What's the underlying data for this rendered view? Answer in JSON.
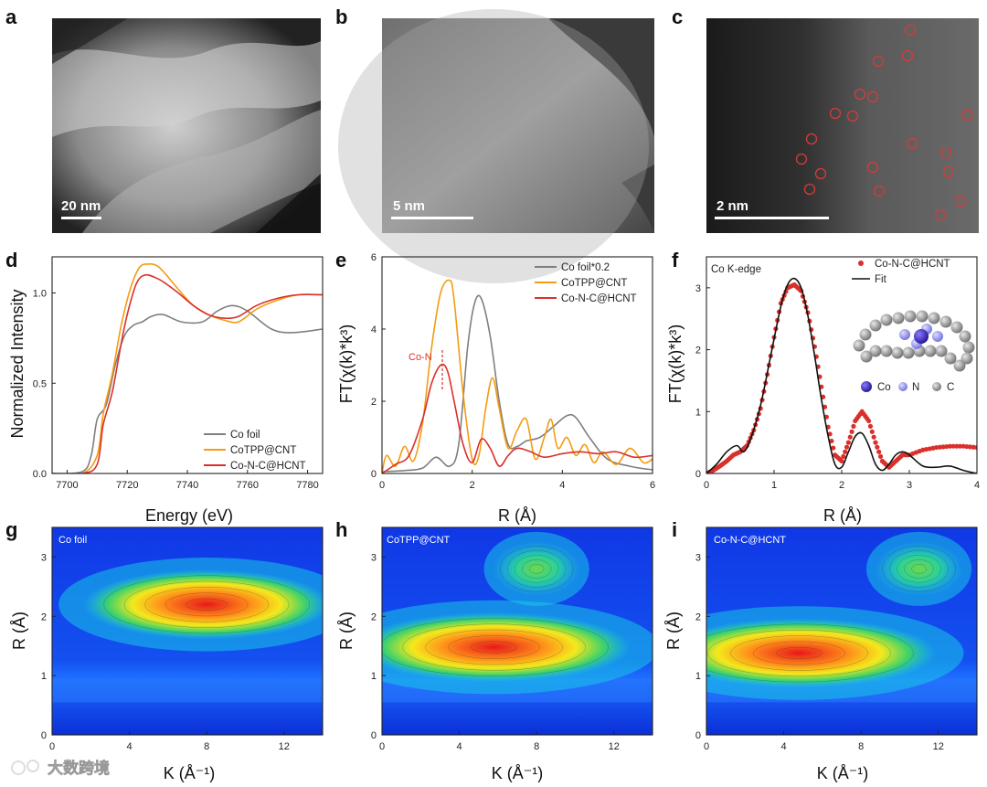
{
  "panel_labels": [
    "a",
    "b",
    "c",
    "d",
    "e",
    "f",
    "g",
    "h",
    "i"
  ],
  "micro": {
    "a": {
      "scale_bar": "20 nm"
    },
    "b": {
      "scale_bar": "5 nm"
    },
    "c": {
      "scale_bar": "2 nm"
    }
  },
  "watermark": "大数跨境",
  "colors": {
    "co_foil": "#7f7f7f",
    "cotpp": "#f39c12",
    "conc": "#d9302b",
    "fit": "#111111"
  },
  "chart_data": [
    {
      "id": "d",
      "type": "line",
      "xlabel": "Energy (eV)",
      "ylabel": "Normalized Intensity",
      "xlim": [
        7695,
        7785
      ],
      "ylim": [
        0,
        1.2
      ],
      "xticks": [
        "7700",
        "7720",
        "7740",
        "7760",
        "7780"
      ],
      "xtick_values": [
        7700,
        7720,
        7740,
        7760,
        7780
      ],
      "yticks": [
        "0.0",
        "0.5",
        "1.0"
      ],
      "ytick_values": [
        0,
        0.5,
        1.0
      ],
      "legend": [
        "Co foil",
        "CoTPP@CNT",
        "Co-N-C@HCNT"
      ],
      "series": [
        {
          "name": "Co foil",
          "color": "#7f7f7f",
          "x": [
            7695,
            7705,
            7708,
            7710,
            7713,
            7716,
            7719,
            7722,
            7725,
            7728,
            7732,
            7738,
            7745,
            7750,
            7755,
            7760,
            7768,
            7775,
            7785
          ],
          "y": [
            0.0,
            0.01,
            0.1,
            0.3,
            0.38,
            0.6,
            0.76,
            0.82,
            0.84,
            0.87,
            0.88,
            0.84,
            0.84,
            0.9,
            0.93,
            0.9,
            0.8,
            0.78,
            0.8
          ]
        },
        {
          "name": "CoTPP@CNT",
          "color": "#f39c12",
          "x": [
            7695,
            7705,
            7710,
            7712,
            7715,
            7718,
            7721,
            7724,
            7727,
            7730,
            7733,
            7737,
            7742,
            7747,
            7752,
            7757,
            7763,
            7770,
            7777,
            7785
          ],
          "y": [
            0.0,
            0.0,
            0.1,
            0.33,
            0.55,
            0.82,
            1.02,
            1.14,
            1.16,
            1.15,
            1.1,
            1.02,
            0.93,
            0.88,
            0.85,
            0.84,
            0.91,
            0.96,
            0.99,
            0.99
          ]
        },
        {
          "name": "Co-N-C@HCNT",
          "color": "#d9302b",
          "x": [
            7695,
            7705,
            7710,
            7712,
            7715,
            7718,
            7720,
            7723,
            7726,
            7730,
            7733,
            7737,
            7742,
            7747,
            7752,
            7757,
            7763,
            7770,
            7777,
            7785
          ],
          "y": [
            0.0,
            0.0,
            0.05,
            0.27,
            0.45,
            0.72,
            0.88,
            1.05,
            1.1,
            1.08,
            1.05,
            1.0,
            0.93,
            0.88,
            0.86,
            0.87,
            0.93,
            0.97,
            0.99,
            0.99
          ]
        }
      ]
    },
    {
      "id": "e",
      "type": "line",
      "xlabel": "R (Å)",
      "ylabel": "FT(χ(k)*k³)",
      "xlim": [
        0,
        6
      ],
      "ylim": [
        0,
        6
      ],
      "xticks": [
        "0",
        "2",
        "4",
        "6"
      ],
      "xtick_values": [
        0,
        2,
        4,
        6
      ],
      "yticks": [
        "0",
        "2",
        "4",
        "6"
      ],
      "ytick_values": [
        0,
        2,
        4,
        6
      ],
      "legend": [
        "Co foil*0.2",
        "CoTPP@CNT",
        "Co-N-C@HCNT"
      ],
      "annotation": "Co-N",
      "series": [
        {
          "name": "Co foil*0.2",
          "color": "#7f7f7f",
          "x": [
            0,
            0.5,
            0.9,
            1.2,
            1.5,
            1.7,
            1.9,
            2.05,
            2.2,
            2.4,
            2.6,
            2.8,
            3.0,
            3.2,
            3.5,
            3.8,
            4.1,
            4.3,
            4.6,
            5.0,
            5.5,
            6.0
          ],
          "y": [
            0.05,
            0.08,
            0.15,
            0.45,
            0.2,
            0.8,
            3.5,
            4.7,
            4.85,
            3.8,
            2.0,
            0.8,
            0.75,
            0.9,
            1.0,
            1.3,
            1.6,
            1.55,
            1.0,
            0.4,
            0.2,
            0.1
          ]
        },
        {
          "name": "CoTPP@CNT",
          "color": "#f39c12",
          "x": [
            0,
            0.1,
            0.3,
            0.5,
            0.7,
            0.9,
            1.1,
            1.3,
            1.5,
            1.6,
            1.8,
            2.0,
            2.15,
            2.3,
            2.45,
            2.6,
            2.8,
            3.0,
            3.2,
            3.4,
            3.6,
            3.75,
            3.9,
            4.1,
            4.3,
            4.5,
            4.7,
            4.9,
            5.2,
            5.5,
            5.8,
            6.0
          ],
          "y": [
            0.0,
            0.5,
            0.2,
            0.75,
            0.35,
            1.4,
            3.5,
            5.0,
            5.35,
            4.8,
            2.2,
            0.4,
            0.5,
            1.8,
            2.65,
            1.8,
            0.7,
            1.2,
            1.5,
            0.4,
            1.0,
            1.5,
            0.7,
            1.0,
            0.5,
            0.8,
            0.3,
            0.6,
            0.25,
            0.7,
            0.3,
            0.4
          ]
        },
        {
          "name": "Co-N-C@HCNT",
          "color": "#d9302b",
          "x": [
            0,
            0.3,
            0.6,
            0.9,
            1.1,
            1.3,
            1.45,
            1.6,
            1.8,
            2.0,
            2.2,
            2.4,
            2.6,
            2.8,
            3.0,
            3.3,
            3.6,
            4.0,
            4.4,
            4.8,
            5.2,
            5.6,
            6.0
          ],
          "y": [
            0.0,
            0.25,
            0.5,
            1.5,
            2.5,
            3.0,
            2.85,
            2.0,
            0.8,
            0.3,
            0.95,
            0.7,
            0.2,
            0.5,
            0.7,
            0.6,
            0.45,
            0.55,
            0.6,
            0.55,
            0.6,
            0.45,
            0.5
          ]
        }
      ]
    },
    {
      "id": "f",
      "type": "line",
      "xlabel": "R (Å)",
      "ylabel": "FT(χ(k)*k³)",
      "xlim": [
        0,
        4
      ],
      "ylim": [
        0,
        3.5
      ],
      "xticks": [
        "0",
        "1",
        "2",
        "3",
        "4"
      ],
      "xtick_values": [
        0,
        1,
        2,
        3,
        4
      ],
      "yticks": [
        "0",
        "1",
        "2",
        "3"
      ],
      "ytick_values": [
        0,
        1,
        2,
        3
      ],
      "title": "Co K-edge",
      "legend": [
        "Co-N-C@HCNT",
        "Fit"
      ],
      "inset_legend": [
        "Co",
        "N",
        "C"
      ],
      "series": [
        {
          "name": "Co-N-C@HCNT",
          "style": "dots",
          "color": "#d9302b",
          "x": [
            0,
            0.1,
            0.2,
            0.3,
            0.4,
            0.5,
            0.6,
            0.7,
            0.8,
            0.9,
            1.0,
            1.1,
            1.2,
            1.3,
            1.4,
            1.5,
            1.6,
            1.7,
            1.8,
            1.9,
            2.0,
            2.1,
            2.2,
            2.3,
            2.4,
            2.5,
            2.6,
            2.7,
            2.8,
            2.9,
            3.0,
            3.2,
            3.4,
            3.6,
            3.8,
            4.0
          ],
          "y": [
            0.0,
            0.05,
            0.12,
            0.2,
            0.3,
            0.35,
            0.45,
            0.7,
            1.05,
            1.6,
            2.2,
            2.75,
            3.0,
            3.05,
            2.95,
            2.6,
            2.05,
            1.4,
            0.75,
            0.3,
            0.2,
            0.5,
            0.85,
            1.0,
            0.85,
            0.5,
            0.2,
            0.1,
            0.2,
            0.3,
            0.3,
            0.38,
            0.42,
            0.44,
            0.44,
            0.42
          ]
        },
        {
          "name": "Fit",
          "style": "line",
          "color": "#111111",
          "x": [
            0,
            0.15,
            0.3,
            0.45,
            0.55,
            0.65,
            0.8,
            0.95,
            1.1,
            1.2,
            1.3,
            1.4,
            1.5,
            1.6,
            1.7,
            1.8,
            1.9,
            2.0,
            2.1,
            2.2,
            2.3,
            2.4,
            2.5,
            2.6,
            2.7,
            2.8,
            2.9,
            3.0,
            3.2,
            3.4,
            3.6,
            3.8,
            4.0
          ],
          "y": [
            0.0,
            0.15,
            0.35,
            0.45,
            0.35,
            0.55,
            1.1,
            1.9,
            2.7,
            3.05,
            3.15,
            3.0,
            2.55,
            1.9,
            1.2,
            0.6,
            0.15,
            0.1,
            0.35,
            0.6,
            0.65,
            0.45,
            0.15,
            0.05,
            0.15,
            0.3,
            0.35,
            0.3,
            0.12,
            0.1,
            0.12,
            0.05,
            0.0
          ]
        }
      ]
    },
    {
      "id": "g",
      "type": "heatmap",
      "label": "Co foil",
      "xlabel": "K (Å⁻¹)",
      "ylabel": "R (Å)",
      "xlim": [
        0,
        14
      ],
      "ylim": [
        0,
        3.5
      ],
      "xticks": [
        "0",
        "4",
        "8",
        "12"
      ],
      "xtick_values": [
        0,
        4,
        8,
        12
      ],
      "yticks": [
        "0",
        "1",
        "2",
        "3"
      ],
      "ytick_values": [
        0,
        1,
        2,
        3
      ],
      "peaks": [
        {
          "k": 8.0,
          "r": 2.2,
          "intensity": 1.0
        }
      ]
    },
    {
      "id": "h",
      "type": "heatmap",
      "label": "CoTPP@CNT",
      "xlabel": "K (Å⁻¹)",
      "ylabel": "R (Å)",
      "xlim": [
        0,
        14
      ],
      "ylim": [
        0,
        3.5
      ],
      "xticks": [
        "0",
        "4",
        "8",
        "12"
      ],
      "xtick_values": [
        0,
        4,
        8,
        12
      ],
      "yticks": [
        "0",
        "1",
        "2",
        "3"
      ],
      "ytick_values": [
        0,
        1,
        2,
        3
      ],
      "peaks": [
        {
          "k": 5.8,
          "r": 1.48,
          "intensity": 1.0
        },
        {
          "k": 8.0,
          "r": 2.8,
          "intensity": 0.42
        }
      ]
    },
    {
      "id": "i",
      "type": "heatmap",
      "label": "Co-N-C@HCNT",
      "xlabel": "K (Å⁻¹)",
      "ylabel": "R (Å)",
      "xlim": [
        0,
        14
      ],
      "ylim": [
        0,
        3.5
      ],
      "xticks": [
        "0",
        "4",
        "8",
        "12"
      ],
      "xtick_values": [
        0,
        4,
        8,
        12
      ],
      "yticks": [
        "0",
        "1",
        "2",
        "3"
      ],
      "ytick_values": [
        0,
        1,
        2,
        3
      ],
      "peaks": [
        {
          "k": 4.8,
          "r": 1.38,
          "intensity": 1.0
        },
        {
          "k": 11.0,
          "r": 2.8,
          "intensity": 0.45
        }
      ]
    }
  ]
}
